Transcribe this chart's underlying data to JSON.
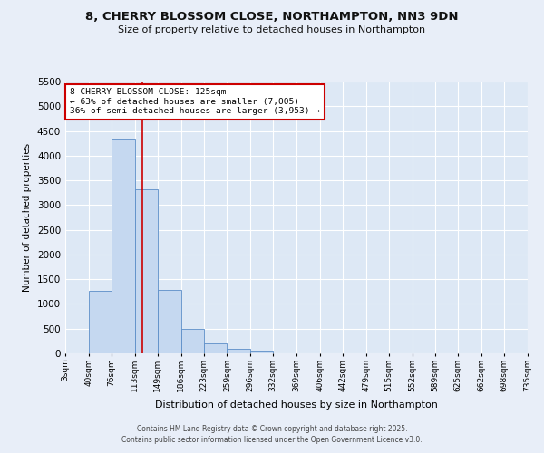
{
  "title1": "8, CHERRY BLOSSOM CLOSE, NORTHAMPTON, NN3 9DN",
  "title2": "Size of property relative to detached houses in Northampton",
  "xlabel": "Distribution of detached houses by size in Northampton",
  "ylabel": "Number of detached properties",
  "bar_values": [
    0,
    1270,
    4350,
    3320,
    1280,
    500,
    210,
    90,
    50,
    0,
    0,
    0,
    0,
    0,
    0,
    0,
    0,
    0,
    0,
    0
  ],
  "bin_labels": [
    "3sqm",
    "40sqm",
    "76sqm",
    "113sqm",
    "149sqm",
    "186sqm",
    "223sqm",
    "259sqm",
    "296sqm",
    "332sqm",
    "369sqm",
    "406sqm",
    "442sqm",
    "479sqm",
    "515sqm",
    "552sqm",
    "589sqm",
    "625sqm",
    "662sqm",
    "698sqm",
    "735sqm"
  ],
  "n_bins": 20,
  "bin_edges": [
    3,
    40,
    76,
    113,
    149,
    186,
    223,
    259,
    296,
    332,
    369,
    406,
    442,
    479,
    515,
    552,
    589,
    625,
    662,
    698,
    735
  ],
  "bar_color": "#c5d8f0",
  "bar_edge_color": "#5b8dc8",
  "bg_color": "#dde8f5",
  "fig_bg_color": "#e8eef8",
  "grid_color": "#ffffff",
  "vline_x": 125,
  "vline_color": "#cc0000",
  "ylim": [
    0,
    5500
  ],
  "yticks": [
    0,
    500,
    1000,
    1500,
    2000,
    2500,
    3000,
    3500,
    4000,
    4500,
    5000,
    5500
  ],
  "annotation_title": "8 CHERRY BLOSSOM CLOSE: 125sqm",
  "annotation_line1": "← 63% of detached houses are smaller (7,005)",
  "annotation_line2": "36% of semi-detached houses are larger (3,953) →",
  "annotation_box_color": "#ffffff",
  "annotation_border_color": "#cc0000",
  "footer1": "Contains HM Land Registry data © Crown copyright and database right 2025.",
  "footer2": "Contains public sector information licensed under the Open Government Licence v3.0."
}
